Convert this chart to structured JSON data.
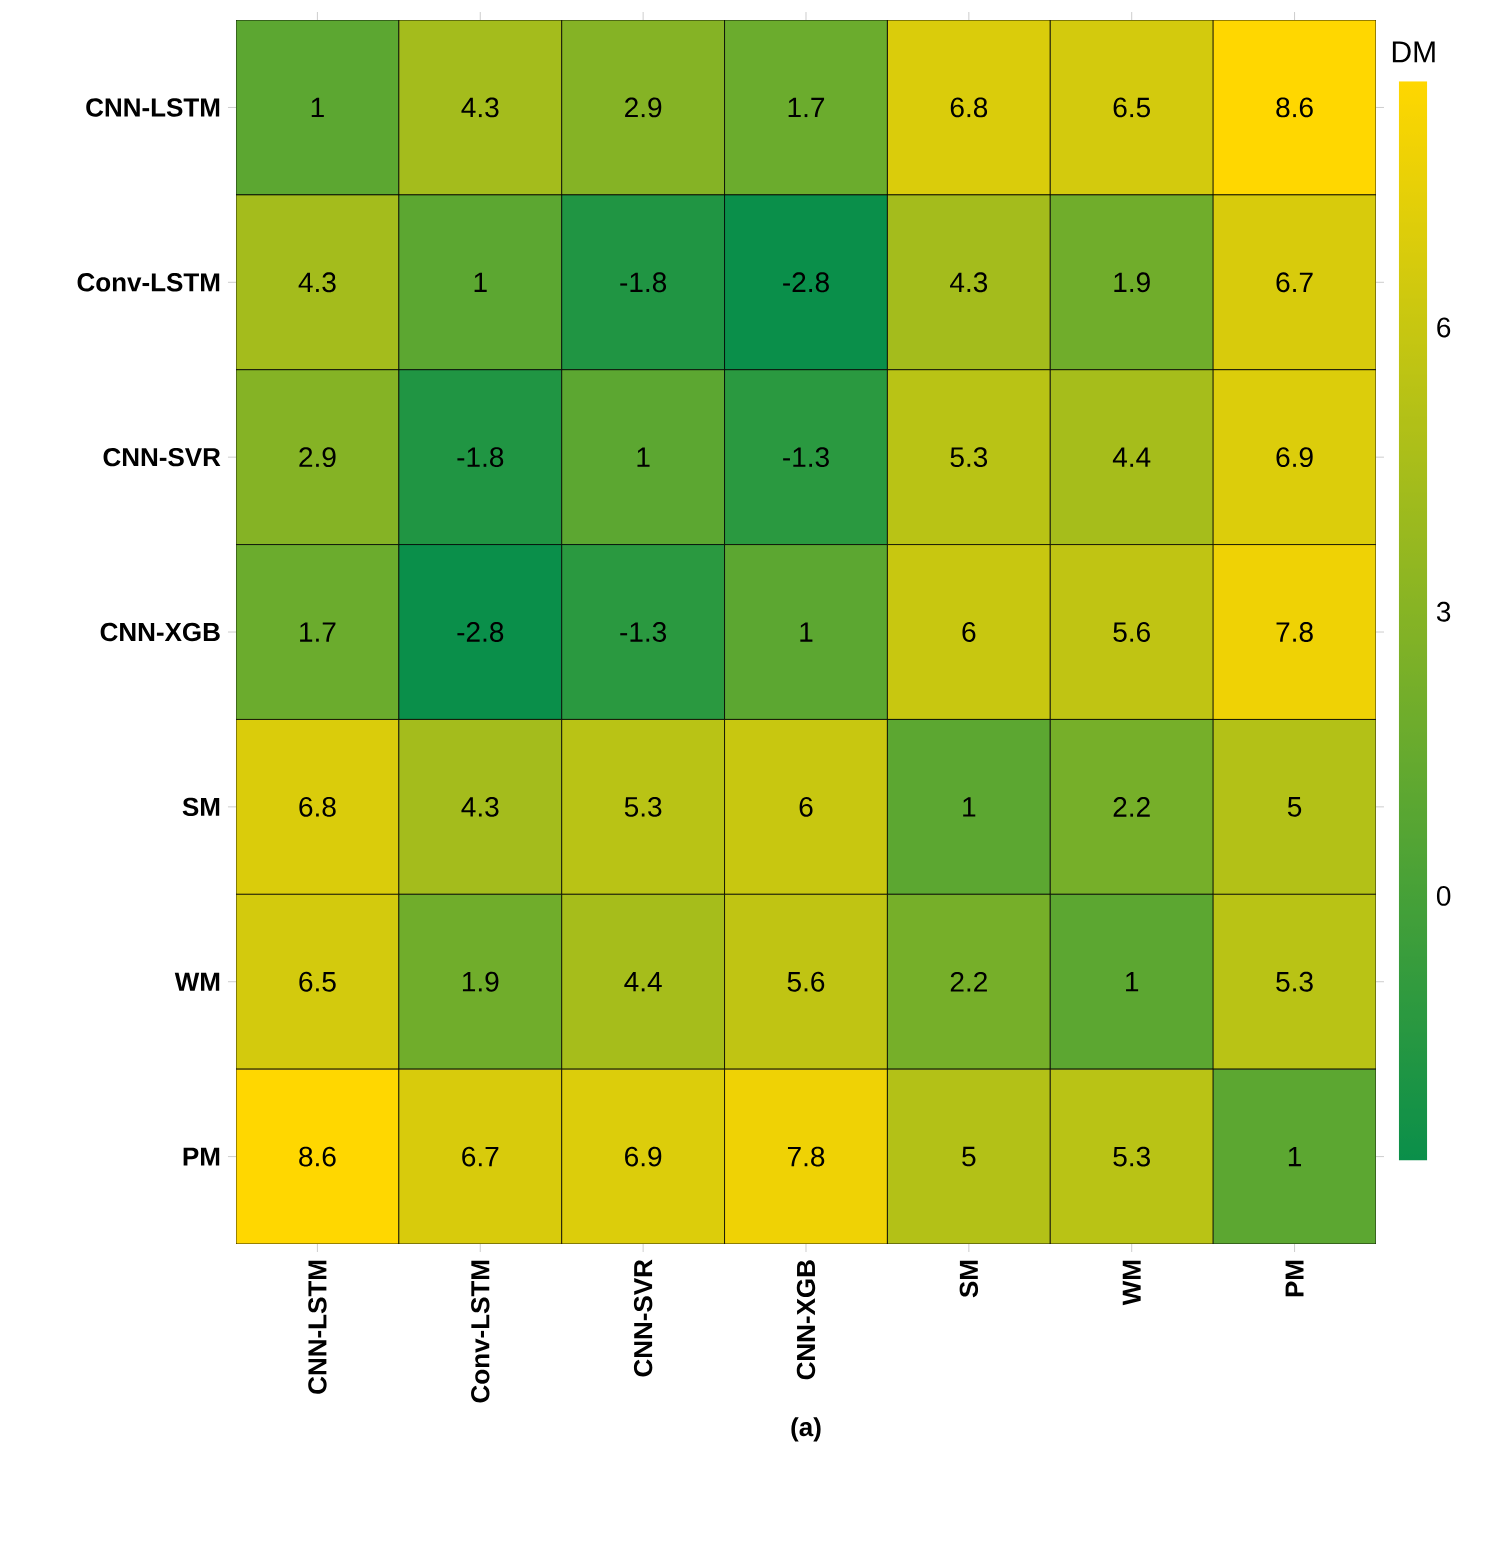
{
  "chart_data": {
    "type": "heatmap",
    "xlabel": "(a)",
    "clabel": "DM",
    "categories": [
      "CNN-LSTM",
      "Conv-LSTM",
      "CNN-SVR",
      "CNN-XGB",
      "SM",
      "WM",
      "PM"
    ],
    "y_categories": [
      "CNN-LSTM",
      "Conv-LSTM",
      "CNN-SVR",
      "CNN-XGB",
      "SM",
      "WM",
      "PM"
    ],
    "cells": [
      [
        1,
        4.3,
        2.9,
        1.7,
        6.8,
        6.5,
        8.6
      ],
      [
        4.3,
        1,
        -1.8,
        -2.8,
        4.3,
        1.9,
        6.7
      ],
      [
        2.9,
        -1.8,
        1,
        -1.3,
        5.3,
        4.4,
        6.9
      ],
      [
        1.7,
        -2.8,
        -1.3,
        1,
        6,
        5.6,
        7.8
      ],
      [
        6.8,
        4.3,
        5.3,
        6,
        1,
        2.2,
        5
      ],
      [
        6.5,
        1.9,
        4.4,
        5.6,
        2.2,
        1,
        5.3
      ],
      [
        8.6,
        6.7,
        6.9,
        7.8,
        5,
        5.3,
        1
      ]
    ],
    "data_labels": true,
    "clim": [
      -2.8,
      8.6
    ],
    "cticks": [
      0,
      3,
      6
    ],
    "colors": [
      "#0a8f4a",
      "#ffd700"
    ]
  }
}
